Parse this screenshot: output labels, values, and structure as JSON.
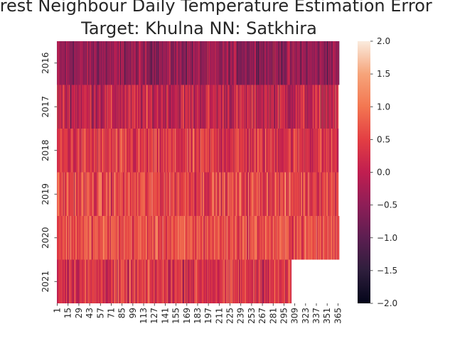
{
  "chart_data": {
    "type": "heatmap",
    "title_lines": [
      "Nearest Neighbour Daily Temperature Estimation Error",
      "Target: Khulna NN: Satkhira"
    ],
    "xlabel": "",
    "ylabel": "",
    "x_tick_labels": [
      "1",
      "15",
      "29",
      "43",
      "57",
      "71",
      "85",
      "99",
      "113",
      "127",
      "141",
      "155",
      "169",
      "183",
      "197",
      "211",
      "225",
      "239",
      "253",
      "267",
      "281",
      "295",
      "309",
      "323",
      "337",
      "351",
      "365"
    ],
    "x_tick_days": [
      1,
      15,
      29,
      43,
      57,
      71,
      85,
      99,
      113,
      127,
      141,
      155,
      169,
      183,
      197,
      211,
      225,
      239,
      253,
      267,
      281,
      295,
      309,
      323,
      337,
      351,
      365
    ],
    "rows": [
      {
        "year": "2016",
        "days": 366,
        "mean": -0.45,
        "spread": 0.55
      },
      {
        "year": "2017",
        "days": 365,
        "mean": 0.05,
        "spread": 0.65
      },
      {
        "year": "2018",
        "days": 365,
        "mean": 0.35,
        "spread": 0.6
      },
      {
        "year": "2019",
        "days": 365,
        "mean": 0.55,
        "spread": 0.6
      },
      {
        "year": "2020",
        "days": 366,
        "mean": 0.65,
        "spread": 0.55
      },
      {
        "year": "2021",
        "days": 304,
        "mean": 0.35,
        "spread": 0.6
      }
    ],
    "total_days": 366,
    "colorbar": {
      "vmin": -2.0,
      "vmax": 2.0,
      "tick_values": [
        2.0,
        1.5,
        1.0,
        0.5,
        0.0,
        -0.5,
        -1.0,
        -1.5,
        -2.0
      ],
      "tick_labels": [
        "2.0",
        "1.5",
        "1.0",
        "0.5",
        "0.0",
        "−0.5",
        "−1.0",
        "−1.5",
        "−2.0"
      ],
      "colormap": "rocket",
      "colors": [
        "#03051a",
        "#2e1e3c",
        "#5c1e51",
        "#8e1e57",
        "#c01e50",
        "#e33e43",
        "#f37651",
        "#f6a47a",
        "#faebdd"
      ]
    },
    "grid": false,
    "legend": "colorbar-right"
  }
}
